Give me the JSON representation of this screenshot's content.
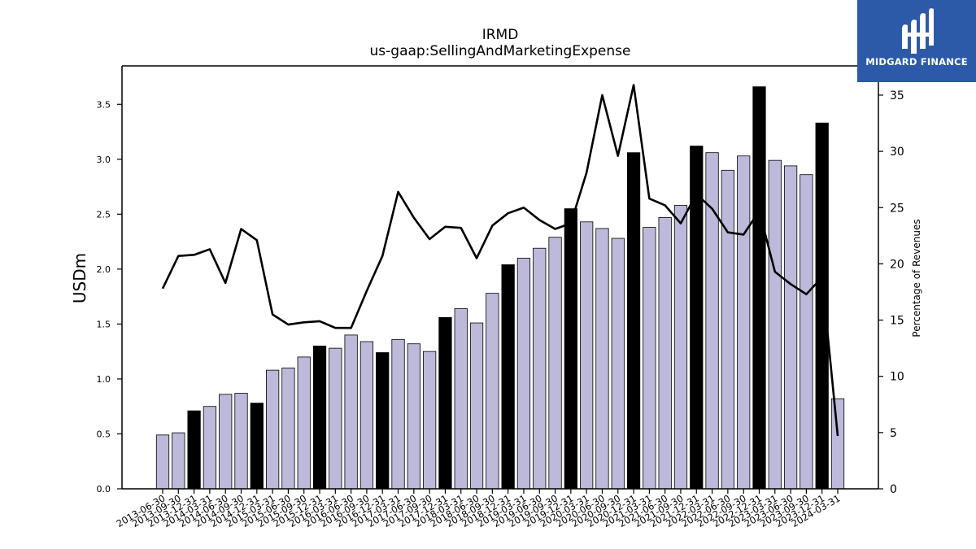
{
  "chart_data": {
    "type": "bar",
    "title": "IRMD",
    "subtitle": "us-gaap:SellingAndMarketingExpense",
    "ylabel": "USDm",
    "y2label": "Percentage of Revenues",
    "ylim": [
      0,
      3.85
    ],
    "y2lim": [
      0,
      37.6
    ],
    "yticks": [
      "0.0",
      "0.5",
      "1.0",
      "1.5",
      "2.0",
      "2.5",
      "3.0",
      "3.5"
    ],
    "y2ticks": [
      "0",
      "5",
      "10",
      "15",
      "20",
      "25",
      "30",
      "35"
    ],
    "grid": false,
    "categories": [
      "2013-06-30",
      "2013-09-30",
      "2013-12-31",
      "2014-03-31",
      "2014-06-30",
      "2014-09-30",
      "2014-12-31",
      "2015-03-31",
      "2015-06-30",
      "2015-09-30",
      "2015-12-31",
      "2016-03-31",
      "2016-06-30",
      "2016-09-30",
      "2016-12-31",
      "2017-03-31",
      "2017-06-30",
      "2017-09-30",
      "2017-12-31",
      "2018-03-31",
      "2018-06-30",
      "2018-09-30",
      "2018-12-31",
      "2019-03-31",
      "2019-06-30",
      "2019-09-30",
      "2019-12-31",
      "2020-03-31",
      "2020-06-30",
      "2020-09-30",
      "2020-12-31",
      "2021-03-31",
      "2021-06-30",
      "2021-09-30",
      "2021-12-31",
      "2022-03-31",
      "2022-06-30",
      "2022-09-30",
      "2022-12-31",
      "2023-03-31",
      "2023-06-30",
      "2023-09-30",
      "2023-12-31",
      "2024-03-31"
    ],
    "series": [
      {
        "kind": "bar",
        "values": [
          0.49,
          0.51,
          0.71,
          0.75,
          0.86,
          0.87,
          0.78,
          1.08,
          1.1,
          1.2,
          1.3,
          1.28,
          1.4,
          1.34,
          1.24,
          1.36,
          1.32,
          1.25,
          1.56,
          1.64,
          1.51,
          1.78,
          2.04,
          2.1,
          2.19,
          2.29,
          2.55,
          2.43,
          2.37,
          2.28,
          3.06,
          2.38,
          2.47,
          2.58,
          3.12,
          3.06,
          2.9,
          3.03,
          3.66,
          2.99,
          2.94,
          2.86,
          3.33,
          0.82
        ],
        "highlight": [
          false,
          false,
          true,
          false,
          false,
          false,
          true,
          false,
          false,
          false,
          true,
          false,
          false,
          false,
          true,
          false,
          false,
          false,
          true,
          false,
          false,
          false,
          true,
          false,
          false,
          false,
          true,
          false,
          false,
          false,
          true,
          false,
          false,
          false,
          true,
          false,
          false,
          false,
          true,
          false,
          false,
          false,
          true,
          false
        ]
      },
      {
        "kind": "line",
        "axis": "right",
        "values": [
          17.8,
          20.7,
          20.8,
          21.3,
          18.3,
          23.1,
          22.1,
          15.5,
          14.6,
          14.8,
          14.9,
          14.3,
          14.3,
          17.6,
          20.7,
          26.4,
          24.1,
          22.2,
          23.3,
          23.2,
          20.5,
          23.4,
          24.5,
          25.0,
          23.9,
          23.1,
          23.6,
          28.1,
          35.0,
          29.6,
          35.9,
          25.8,
          25.2,
          23.6,
          26.2,
          24.9,
          22.8,
          22.6,
          24.7,
          19.3,
          18.2,
          17.3,
          18.8,
          4.7
        ]
      }
    ],
    "colors": {
      "bar": "#bcb9da",
      "bar_highlight": "#000000",
      "line": "#000000"
    }
  },
  "logo": {
    "text": "MIDGARD FINANCE",
    "background": "#2c5aa8",
    "icon": "mh-monogram-icon"
  }
}
